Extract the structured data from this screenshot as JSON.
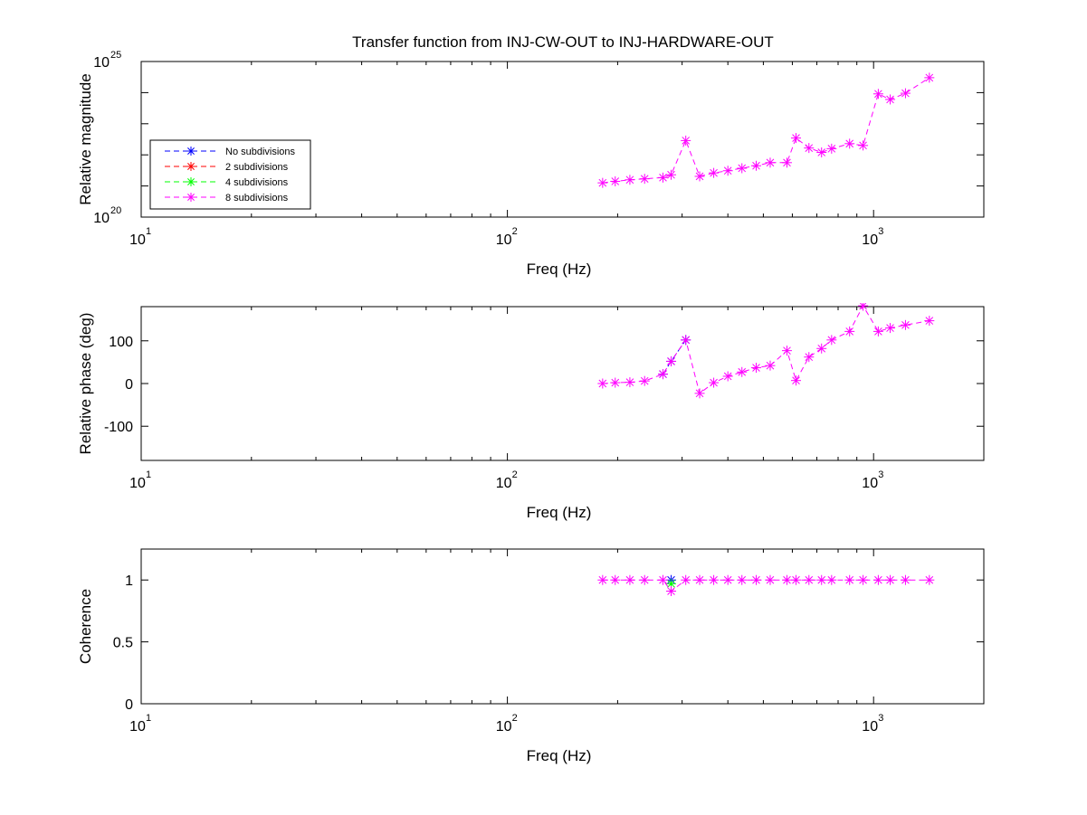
{
  "chart_data": [
    {
      "type": "line",
      "title": "Transfer function from INJ-CW-OUT to INJ-HARDWARE-OUT",
      "xlabel": "Freq (Hz)",
      "ylabel": "Relative magnitude",
      "xscale": "log",
      "yscale": "log",
      "xlim": [
        10,
        2000
      ],
      "ylim": [
        1e+20,
        1e+25
      ],
      "x_ticks": [
        {
          "base": "10",
          "exp": "1",
          "value": 10
        },
        {
          "base": "10",
          "exp": "2",
          "value": 100
        },
        {
          "base": "10",
          "exp": "3",
          "value": 1000
        }
      ],
      "y_ticks": [
        {
          "base": "10",
          "exp": "20",
          "value": 1e+20
        },
        {
          "base": "10",
          "exp": "25",
          "value": 1e+25
        }
      ],
      "grid": false,
      "legend": {
        "position": "middle-left",
        "entries": [
          "No subdivisions",
          "2 subdivisions",
          "4 subdivisions",
          "8 subdivisions"
        ]
      },
      "series": [
        {
          "name": "8 subdivisions",
          "color": "#ff00ff",
          "x": [
            182,
            197,
            216,
            237,
            266,
            280,
            307,
            335,
            366,
            400,
            437,
            478,
            522,
            580,
            614,
            666,
            721,
            768,
            860,
            936,
            1030,
            1110,
            1222,
            1420
          ],
          "y": [
            1.26e+21,
            1.41e+21,
            1.58e+21,
            1.7e+21,
            1.86e+21,
            2.29e+21,
            2.88e+22,
            2.04e+21,
            2.63e+21,
            3.09e+21,
            3.72e+21,
            4.47e+21,
            5.62e+21,
            5.62e+21,
            3.47e+22,
            1.66e+22,
            1.2e+22,
            1.58e+22,
            2.29e+22,
            2e+22,
            9.12e+23,
            6.03e+23,
            9.55e+23,
            3.02e+24
          ]
        }
      ]
    },
    {
      "type": "line",
      "xlabel": "Freq (Hz)",
      "ylabel": "Relative phase (deg)",
      "xscale": "log",
      "xlim": [
        10,
        2000
      ],
      "ylim": [
        -180,
        180
      ],
      "x_ticks": [
        {
          "base": "10",
          "exp": "1",
          "value": 10
        },
        {
          "base": "10",
          "exp": "2",
          "value": 100
        },
        {
          "base": "10",
          "exp": "3",
          "value": 1000
        }
      ],
      "y_ticks": [
        {
          "label": "100",
          "value": 100
        },
        {
          "label": "0",
          "value": 0
        },
        {
          "label": "-100",
          "value": -100
        }
      ],
      "grid": false,
      "series": [
        {
          "name": "No subdivisions",
          "color": "#0000ff",
          "x": [
            266,
            280,
            307
          ],
          "y": [
            22,
            52,
            102
          ]
        },
        {
          "name": "8 subdivisions",
          "color": "#ff00ff",
          "x": [
            182,
            197,
            216,
            237,
            266,
            280,
            307,
            335,
            366,
            400,
            437,
            478,
            522,
            580,
            614,
            666,
            721,
            768,
            860,
            936,
            1030,
            1110,
            1222,
            1420
          ],
          "y": [
            0,
            2,
            3,
            6,
            22,
            52,
            102,
            -23,
            2,
            17,
            27,
            37,
            42,
            77,
            7,
            62,
            82,
            102,
            122,
            182,
            122,
            130,
            137,
            147
          ]
        }
      ]
    },
    {
      "type": "line",
      "xlabel": "Freq (Hz)",
      "ylabel": "Coherence",
      "xscale": "log",
      "xlim": [
        10,
        2000
      ],
      "ylim": [
        0,
        1.25
      ],
      "x_ticks": [
        {
          "base": "10",
          "exp": "1",
          "value": 10
        },
        {
          "base": "10",
          "exp": "2",
          "value": 100
        },
        {
          "base": "10",
          "exp": "3",
          "value": 1000
        }
      ],
      "y_ticks": [
        {
          "label": "1",
          "value": 1
        },
        {
          "label": "0.5",
          "value": 0.5
        },
        {
          "label": "0",
          "value": 0
        }
      ],
      "grid": false,
      "series": [
        {
          "name": "No subdivisions",
          "color": "#0000ff",
          "x": [
            280
          ],
          "y": [
            1.0
          ]
        },
        {
          "name": "4 subdivisions",
          "color": "#00ff00",
          "x": [
            280
          ],
          "y": [
            0.97
          ]
        },
        {
          "name": "8 subdivisions",
          "color": "#ff00ff",
          "x": [
            182,
            197,
            216,
            237,
            266,
            280,
            307,
            335,
            366,
            400,
            437,
            478,
            522,
            580,
            614,
            666,
            721,
            768,
            860,
            936,
            1030,
            1110,
            1222,
            1420
          ],
          "y": [
            1,
            1,
            1,
            1,
            1,
            0.91,
            1,
            1,
            1,
            1,
            1,
            1,
            1,
            1,
            1,
            1,
            1,
            1,
            1,
            1,
            1,
            1,
            1,
            1
          ]
        }
      ]
    }
  ]
}
